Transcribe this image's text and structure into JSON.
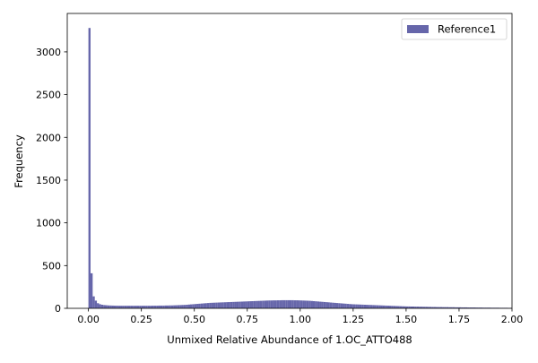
{
  "chart_data": {
    "type": "bar",
    "title": "",
    "xlabel": "Unmixed Relative Abundance of 1.OC_ATTO488",
    "ylabel": "Frequency",
    "xlim": [
      -0.1,
      2.0
    ],
    "ylim": [
      0,
      3450
    ],
    "xticks": [
      0.0,
      0.25,
      0.5,
      0.75,
      1.0,
      1.25,
      1.5,
      1.75,
      2.0
    ],
    "xtick_labels": [
      "0.00",
      "0.25",
      "0.50",
      "0.75",
      "1.00",
      "1.25",
      "1.50",
      "1.75",
      "2.00"
    ],
    "yticks": [
      0,
      500,
      1000,
      1500,
      2000,
      2500,
      3000
    ],
    "ytick_labels": [
      "0",
      "500",
      "1000",
      "1500",
      "2000",
      "2500",
      "3000"
    ],
    "grid": false,
    "legend_position": "top-right",
    "series": [
      {
        "name": "Reference1",
        "color": "#6666aa",
        "bin_start": 0.0,
        "bin_width": 0.01,
        "counts": [
          3280,
          410,
          140,
          90,
          60,
          48,
          42,
          38,
          36,
          34,
          33,
          32,
          31,
          31,
          30,
          30,
          30,
          30,
          30,
          30,
          30,
          30,
          30,
          30,
          30,
          30,
          30,
          30,
          30,
          30,
          31,
          31,
          31,
          32,
          32,
          32,
          33,
          33,
          34,
          34,
          35,
          36,
          37,
          38,
          39,
          40,
          42,
          44,
          46,
          48,
          50,
          52,
          54,
          56,
          58,
          60,
          62,
          64,
          65,
          66,
          67,
          68,
          69,
          70,
          71,
          72,
          73,
          74,
          75,
          76,
          77,
          78,
          79,
          80,
          81,
          82,
          83,
          84,
          85,
          86,
          87,
          88,
          89,
          90,
          91,
          92,
          92,
          93,
          93,
          94,
          94,
          95,
          95,
          95,
          95,
          95,
          95,
          94,
          94,
          93,
          92,
          91,
          90,
          89,
          88,
          86,
          84,
          82,
          80,
          78,
          76,
          74,
          72,
          70,
          68,
          66,
          64,
          62,
          60,
          58,
          56,
          54,
          52,
          50,
          48,
          47,
          46,
          45,
          44,
          43,
          42,
          41,
          40,
          39,
          38,
          37,
          36,
          35,
          34,
          33,
          32,
          31,
          30,
          29,
          28,
          27,
          26,
          25,
          24,
          23,
          22,
          22,
          21,
          21,
          20,
          20,
          19,
          19,
          18,
          18,
          17,
          17,
          16,
          16,
          15,
          15,
          15,
          14,
          14,
          14,
          13,
          13,
          13,
          12,
          12,
          12,
          11,
          11,
          11,
          10,
          10,
          10,
          10,
          9,
          9,
          9,
          8,
          8,
          8,
          8,
          7,
          7,
          7,
          7,
          6,
          6,
          6,
          6,
          5,
          5
        ]
      }
    ]
  }
}
